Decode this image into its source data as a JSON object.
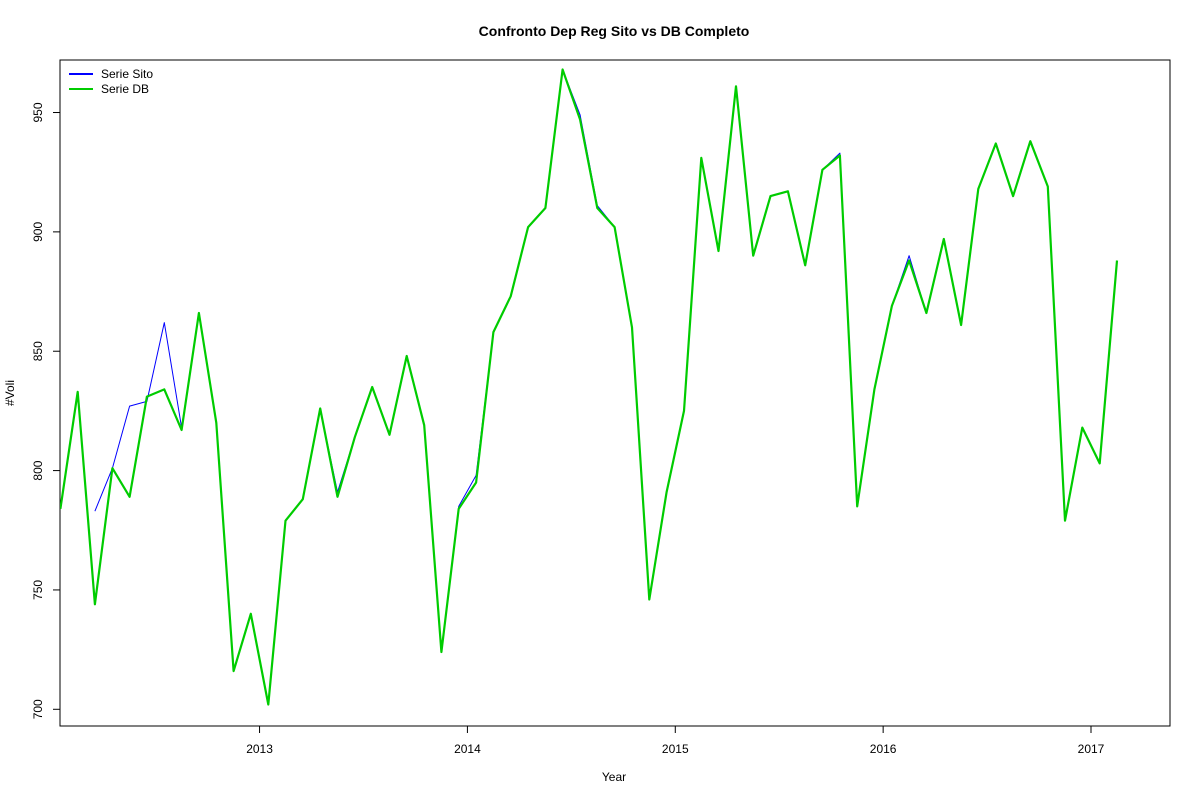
{
  "chart_data": {
    "type": "line",
    "title": "Confronto Dep Reg Sito vs DB Completo",
    "xlabel": "Year",
    "ylabel": "#Voli",
    "xlim": [
      2012.04,
      2017.38
    ],
    "ylim": [
      693,
      972
    ],
    "x_ticks": [
      2013,
      2014,
      2015,
      2016,
      2017
    ],
    "x_tick_labels": [
      "2013",
      "2014",
      "2015",
      "2016",
      "2017"
    ],
    "y_ticks": [
      700,
      750,
      800,
      850,
      900,
      950
    ],
    "y_tick_labels": [
      "700",
      "750",
      "800",
      "850",
      "900",
      "950"
    ],
    "grid": false,
    "legend": {
      "position": "top-left"
    },
    "colors": {
      "sito": "#0000ff",
      "db": "#00cc00"
    },
    "series": [
      {
        "name": "Serie Sito",
        "color": "#0000ff",
        "points": [
          [
            2012.208,
            783
          ],
          [
            2012.292,
            801
          ],
          [
            2012.375,
            827
          ],
          [
            2012.458,
            829
          ],
          [
            2012.542,
            862
          ],
          [
            2012.625,
            818
          ],
          [
            2012.708,
            866
          ],
          [
            2012.792,
            820
          ],
          [
            2012.875,
            716
          ],
          [
            2012.958,
            740
          ],
          [
            2013.042,
            702
          ],
          [
            2013.125,
            779
          ],
          [
            2013.208,
            788
          ],
          [
            2013.292,
            826
          ],
          [
            2013.375,
            791
          ],
          [
            2013.458,
            814
          ],
          [
            2013.542,
            835
          ],
          [
            2013.625,
            815
          ],
          [
            2013.708,
            848
          ],
          [
            2013.792,
            819
          ],
          [
            2013.875,
            724
          ],
          [
            2013.958,
            785
          ],
          [
            2014.042,
            798
          ],
          [
            2014.125,
            858
          ],
          [
            2014.208,
            873
          ],
          [
            2014.292,
            902
          ],
          [
            2014.375,
            910
          ],
          [
            2014.458,
            968
          ],
          [
            2014.542,
            949
          ],
          [
            2014.625,
            911
          ],
          [
            2014.708,
            902
          ],
          [
            2014.792,
            860
          ],
          [
            2014.875,
            746
          ],
          [
            2014.958,
            791
          ],
          [
            2015.042,
            825
          ],
          [
            2015.125,
            931
          ],
          [
            2015.208,
            892
          ],
          [
            2015.292,
            961
          ],
          [
            2015.375,
            890
          ],
          [
            2015.458,
            915
          ],
          [
            2015.542,
            917
          ],
          [
            2015.625,
            886
          ],
          [
            2015.708,
            926
          ],
          [
            2015.792,
            933
          ],
          [
            2015.875,
            785
          ],
          [
            2015.958,
            834
          ],
          [
            2016.042,
            869
          ],
          [
            2016.125,
            890
          ],
          [
            2016.208,
            866
          ],
          [
            2016.292,
            897
          ],
          [
            2016.375,
            861
          ],
          [
            2016.458,
            918
          ],
          [
            2016.542,
            937
          ],
          [
            2016.625,
            915
          ],
          [
            2016.708,
            938
          ],
          [
            2016.792,
            919
          ],
          [
            2016.875,
            779
          ],
          [
            2016.958,
            818
          ],
          [
            2017.042,
            803
          ],
          [
            2017.125,
            888
          ]
        ]
      },
      {
        "name": "Serie DB",
        "color": "#00cc00",
        "points": [
          [
            2012.042,
            784
          ],
          [
            2012.125,
            833
          ],
          [
            2012.208,
            744
          ],
          [
            2012.292,
            801
          ],
          [
            2012.375,
            789
          ],
          [
            2012.458,
            831
          ],
          [
            2012.542,
            834
          ],
          [
            2012.625,
            817
          ],
          [
            2012.708,
            866
          ],
          [
            2012.792,
            820
          ],
          [
            2012.875,
            716
          ],
          [
            2012.958,
            740
          ],
          [
            2013.042,
            702
          ],
          [
            2013.125,
            779
          ],
          [
            2013.208,
            788
          ],
          [
            2013.292,
            826
          ],
          [
            2013.375,
            789
          ],
          [
            2013.458,
            814
          ],
          [
            2013.542,
            835
          ],
          [
            2013.625,
            815
          ],
          [
            2013.708,
            848
          ],
          [
            2013.792,
            819
          ],
          [
            2013.875,
            724
          ],
          [
            2013.958,
            784
          ],
          [
            2014.042,
            795
          ],
          [
            2014.125,
            858
          ],
          [
            2014.208,
            873
          ],
          [
            2014.292,
            902
          ],
          [
            2014.375,
            910
          ],
          [
            2014.458,
            968
          ],
          [
            2014.542,
            947
          ],
          [
            2014.625,
            910
          ],
          [
            2014.708,
            902
          ],
          [
            2014.792,
            860
          ],
          [
            2014.875,
            746
          ],
          [
            2014.958,
            791
          ],
          [
            2015.042,
            825
          ],
          [
            2015.125,
            931
          ],
          [
            2015.208,
            892
          ],
          [
            2015.292,
            961
          ],
          [
            2015.375,
            890
          ],
          [
            2015.458,
            915
          ],
          [
            2015.542,
            917
          ],
          [
            2015.625,
            886
          ],
          [
            2015.708,
            926
          ],
          [
            2015.792,
            932
          ],
          [
            2015.875,
            785
          ],
          [
            2015.958,
            834
          ],
          [
            2016.042,
            869
          ],
          [
            2016.125,
            888
          ],
          [
            2016.208,
            866
          ],
          [
            2016.292,
            897
          ],
          [
            2016.375,
            861
          ],
          [
            2016.458,
            918
          ],
          [
            2016.542,
            937
          ],
          [
            2016.625,
            915
          ],
          [
            2016.708,
            938
          ],
          [
            2016.792,
            919
          ],
          [
            2016.875,
            779
          ],
          [
            2016.958,
            818
          ],
          [
            2017.042,
            803
          ],
          [
            2017.125,
            888
          ]
        ]
      }
    ]
  }
}
